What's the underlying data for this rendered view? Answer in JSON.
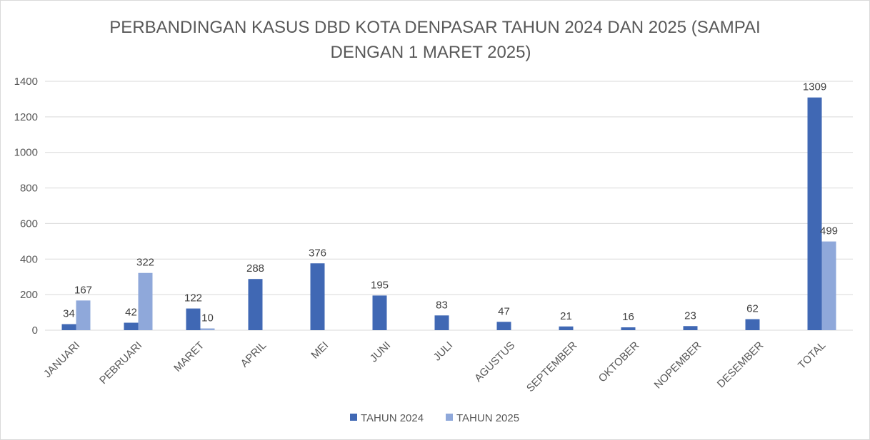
{
  "chart_data": {
    "type": "bar",
    "title": "PERBANDINGAN KASUS DBD KOTA DENPASAR TAHUN 2024 DAN 2025 (SAMPAI DENGAN  1 MARET 2025)",
    "title_lines": [
      "PERBANDINGAN KASUS DBD KOTA DENPASAR TAHUN 2024 DAN 2025 (SAMPAI",
      "DENGAN  1 MARET 2025)"
    ],
    "xlabel": "",
    "ylabel": "",
    "ylim": [
      0,
      1400
    ],
    "yticks": [
      0,
      200,
      400,
      600,
      800,
      1000,
      1200,
      1400
    ],
    "grid": true,
    "legend_position": "bottom",
    "categories": [
      "JANUARI",
      "PEBRUARI",
      "MARET",
      "APRIL",
      "MEI",
      "JUNI",
      "JULI",
      "AGUSTUS",
      "SEPTEMBER",
      "OKTOBER",
      "NOPEMBER",
      "DESEMBER",
      "TOTAL"
    ],
    "series": [
      {
        "name": "TAHUN 2024",
        "color": "#4068b4",
        "values": [
          34,
          42,
          122,
          288,
          376,
          195,
          83,
          47,
          21,
          16,
          23,
          62,
          1309
        ]
      },
      {
        "name": "TAHUN 2025",
        "color": "#8fa8da",
        "values": [
          167,
          322,
          10,
          null,
          null,
          null,
          null,
          null,
          null,
          null,
          null,
          null,
          499
        ]
      }
    ]
  }
}
